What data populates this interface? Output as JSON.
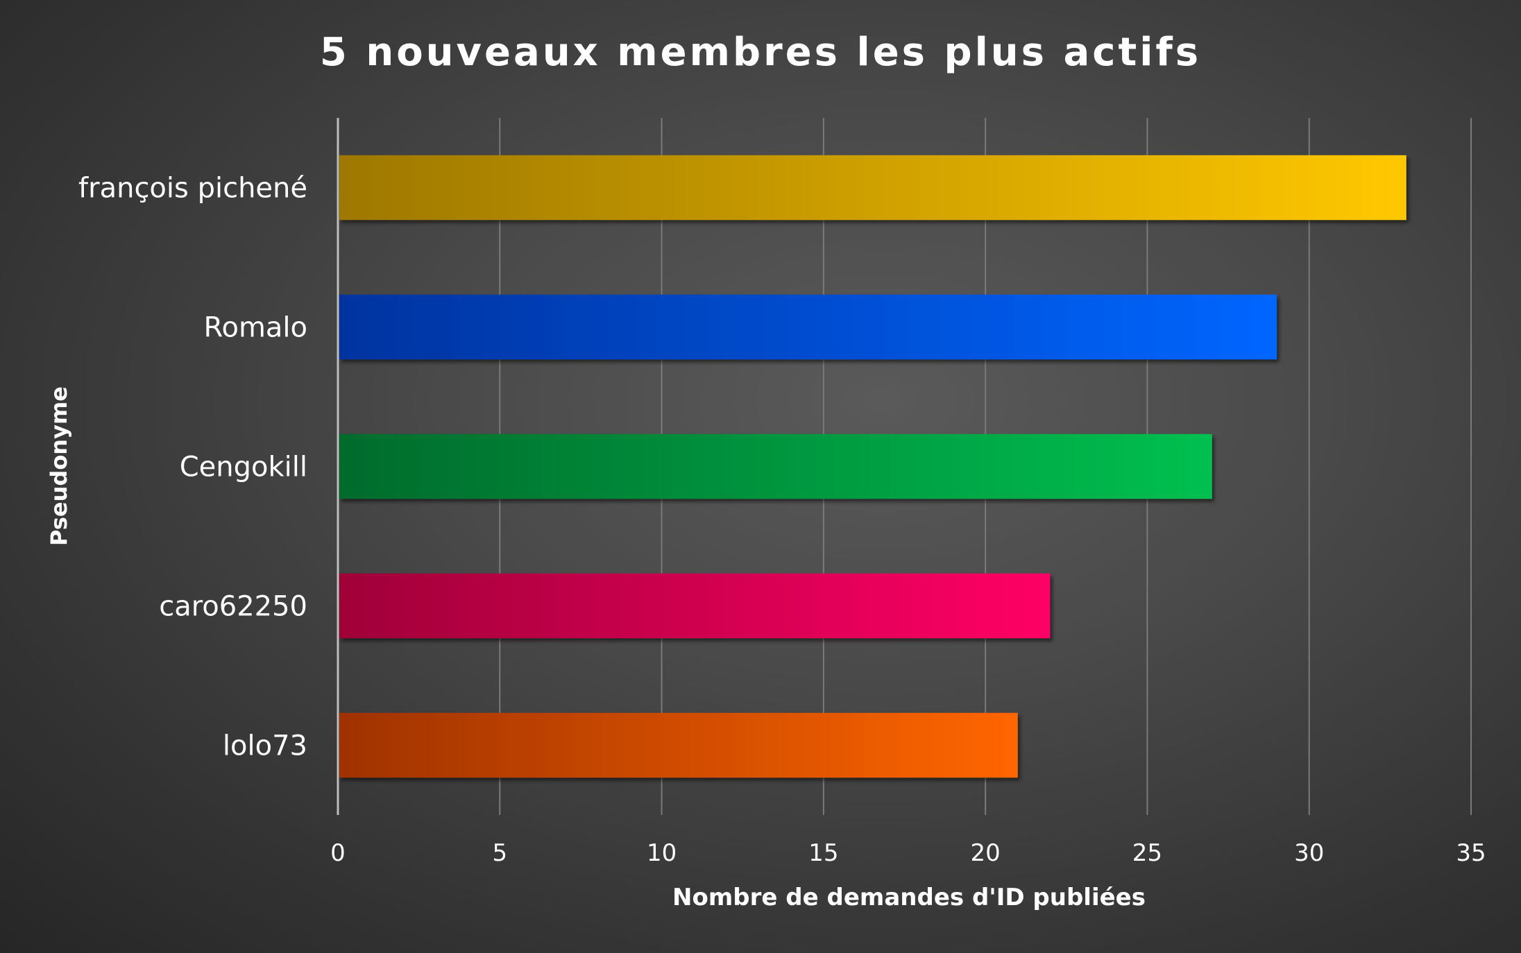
{
  "chart_data": {
    "type": "bar",
    "orientation": "horizontal",
    "title": "5 nouveaux membres les plus actifs",
    "xlabel": "Nombre de demandes d'ID publiées",
    "ylabel": "Pseudonyme",
    "categories": [
      "françois pichené",
      "Romalo",
      "Cengokill",
      "caro62250",
      "lolo73"
    ],
    "values": [
      33,
      29,
      27,
      22,
      21
    ],
    "xlim": [
      0,
      35
    ],
    "xticks": [
      0,
      5,
      10,
      15,
      20,
      25,
      30,
      35
    ],
    "grid": true,
    "legend": "none",
    "bar_colors": [
      {
        "from": "#9e7800",
        "to": "#ffc800"
      },
      {
        "from": "#0033a0",
        "to": "#0066ff"
      },
      {
        "from": "#006b2c",
        "to": "#00c050"
      },
      {
        "from": "#a00038",
        "to": "#ff0066"
      },
      {
        "from": "#a03200",
        "to": "#ff6600"
      }
    ],
    "text_color": "#ffffff",
    "grid_color": "#7a7a7a",
    "axis_color": "#bdbdbd"
  }
}
